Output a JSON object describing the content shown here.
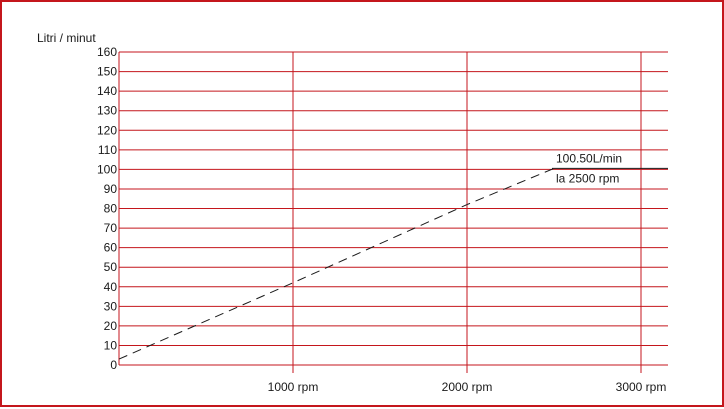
{
  "chart_data": {
    "type": "line",
    "title": "",
    "ylabel": "Litri / minut",
    "xlabel": "",
    "ylim": [
      0,
      160
    ],
    "xlim": [
      0,
      3100
    ],
    "y_ticks": [
      0,
      10,
      20,
      30,
      40,
      50,
      60,
      70,
      80,
      90,
      100,
      110,
      120,
      130,
      140,
      150,
      160
    ],
    "x_ticks": [
      {
        "value": 1000,
        "label": "1000 rpm"
      },
      {
        "value": 2000,
        "label": "2000 rpm"
      },
      {
        "value": 3000,
        "label": "3000 rpm"
      }
    ],
    "grid": true,
    "grid_color": "#c4161c",
    "series": [
      {
        "style": "dashed",
        "color": "#1a1a1a",
        "x": [
          0,
          1000,
          2000,
          2500
        ],
        "y": [
          3,
          42,
          82,
          100.5
        ]
      }
    ],
    "annotation": {
      "line1": "100.50L/min",
      "line2": "la 2500 rpm",
      "x": 2500,
      "y": 100.5
    }
  }
}
